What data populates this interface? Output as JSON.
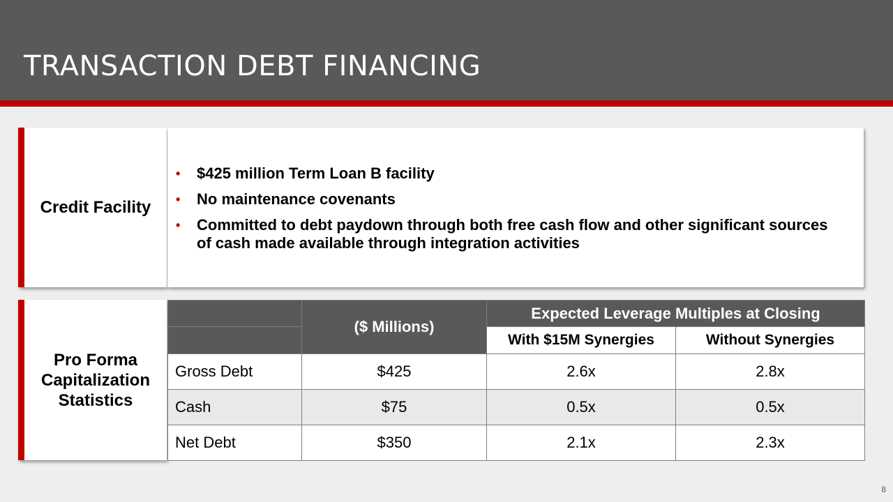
{
  "slide": {
    "title": "TRANSACTION DEBT FINANCING",
    "page_number": "8"
  },
  "credit_facility": {
    "label": "Credit Facility",
    "bullets": [
      "$425 million Term Loan B facility",
      "No maintenance covenants",
      "Committed to debt paydown through both free cash flow and other significant sources of cash made available through integration activities"
    ]
  },
  "pro_forma": {
    "label": "Pro Forma Capitalization Statistics",
    "table": {
      "col_millions": "($ Millions)",
      "group_header": "Expected Leverage Multiples at Closing",
      "col_with": "With $15M Synergies",
      "col_without": "Without Synergies",
      "rows": [
        {
          "label": "Gross Debt",
          "millions": "$425",
          "with": "2.6x",
          "without": "2.8x"
        },
        {
          "label": "Cash",
          "millions": "$75",
          "with": "0.5x",
          "without": "0.5x"
        },
        {
          "label": "Net Debt",
          "millions": "$350",
          "with": "2.1x",
          "without": "2.3x"
        }
      ]
    }
  },
  "colors": {
    "header_bg": "#595959",
    "accent_red": "#c00000",
    "alt_row": "#e9e9e9"
  }
}
